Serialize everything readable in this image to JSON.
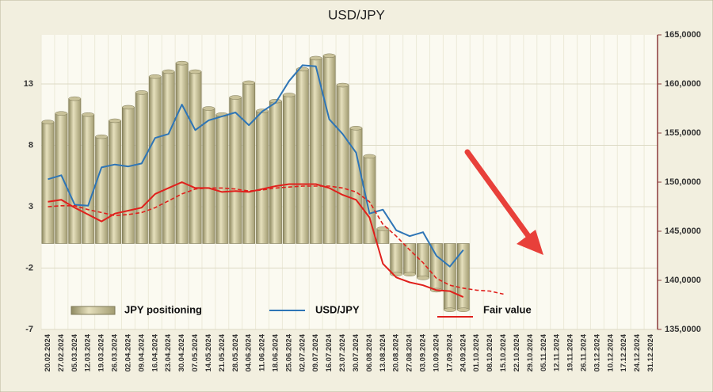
{
  "chart_data": {
    "type": "combo",
    "title": "USD/JPY",
    "categories": [
      "20.02.2024",
      "27.02.2024",
      "05.03.2024",
      "12.03.2024",
      "19.03.2024",
      "26.03.2024",
      "02.04.2024",
      "09.04.2024",
      "16.04.2024",
      "23.04.2024",
      "30.04.2024",
      "07.05.2024",
      "14.05.2024",
      "21.05.2024",
      "28.05.2024",
      "04.06.2024",
      "11.06.2024",
      "18.06.2024",
      "25.06.2024",
      "02.07.2024",
      "09.07.2024",
      "16.07.2024",
      "23.07.2024",
      "30.07.2024",
      "06.08.2024",
      "13.08.2024",
      "20.08.2024",
      "27.08.2024",
      "03.09.2024",
      "10.09.2024",
      "17.09.2024",
      "24.09.2024",
      "01.10.2024",
      "08.10.2024",
      "15.10.2024",
      "22.10.2024",
      "29.10.2024",
      "05.11.2024",
      "12.11.2024",
      "19.11.2024",
      "26.11.2024",
      "03.12.2024",
      "10.12.2024",
      "17.12.2024",
      "24.12.2024",
      "31.12.2024"
    ],
    "series": [
      {
        "name": "JPY positioning",
        "type": "bar",
        "color": "#c9c29a",
        "axis": "y",
        "values": [
          9.9,
          10.6,
          11.8,
          10.5,
          8.7,
          10.0,
          11.1,
          12.3,
          13.6,
          14.0,
          14.7,
          14.0,
          11.0,
          10.5,
          11.9,
          13.1,
          10.8,
          11.6,
          12.1,
          14.2,
          15.1,
          15.3,
          12.9,
          9.4,
          7.1,
          1.2,
          -2.5,
          -2.5,
          -2.8,
          -3.8,
          -5.4,
          -5.4,
          null,
          null,
          null,
          null,
          null,
          null,
          null,
          null,
          null,
          null,
          null,
          null,
          null,
          null
        ]
      },
      {
        "name": "USD/JPY",
        "type": "line",
        "color": "#2e75b6",
        "axis": "y2",
        "values": [
          150.3,
          150.7,
          147.7,
          147.6,
          151.5,
          151.8,
          151.6,
          151.9,
          154.5,
          154.9,
          157.9,
          155.3,
          156.3,
          156.7,
          157.1,
          155.8,
          157.2,
          158.1,
          160.3,
          161.9,
          161.8,
          156.4,
          154.9,
          153.0,
          146.8,
          147.2,
          145.1,
          144.5,
          144.9,
          142.5,
          141.4,
          143.1,
          null,
          null,
          null,
          null,
          null,
          null,
          null,
          null,
          null,
          null,
          null,
          null,
          null,
          null
        ]
      },
      {
        "name": "Fair value",
        "type": "line",
        "color": "#e0201c",
        "axis": "y2",
        "values": [
          148.0,
          148.2,
          147.4,
          146.7,
          146.0,
          146.8,
          147.1,
          147.4,
          148.8,
          149.4,
          150.0,
          149.4,
          149.4,
          149.0,
          149.1,
          149.0,
          149.3,
          149.6,
          149.8,
          149.8,
          149.8,
          149.4,
          148.7,
          148.2,
          146.4,
          141.7,
          140.3,
          139.8,
          139.5,
          139.0,
          138.9,
          138.3,
          null,
          null,
          null,
          null,
          null,
          null,
          null,
          null,
          null,
          null,
          null,
          null,
          null,
          null
        ]
      },
      {
        "type": "line",
        "color": "#e0201c",
        "axis": "y2",
        "dashed": true,
        "values": [
          147.5,
          147.6,
          147.6,
          147.2,
          146.9,
          146.6,
          146.7,
          146.9,
          147.4,
          148.1,
          148.8,
          149.3,
          149.4,
          149.4,
          149.3,
          149.1,
          149.2,
          149.4,
          149.5,
          149.6,
          149.6,
          149.6,
          149.4,
          149.0,
          148.0,
          145.7,
          144.5,
          143.1,
          141.8,
          140.2,
          139.5,
          139.2,
          139.0,
          138.9,
          138.6,
          null,
          null,
          null,
          null,
          null,
          null,
          null,
          null,
          null,
          null,
          null
        ]
      }
    ],
    "ylim": [
      -7,
      17
    ],
    "yticks": [
      -7,
      -2,
      3,
      8,
      13
    ],
    "y2lim": [
      135,
      165
    ],
    "y2ticks": [
      {
        "value": 135,
        "label": "135,0000"
      },
      {
        "value": 140,
        "label": "140,0000"
      },
      {
        "value": 145,
        "label": "145,0000"
      },
      {
        "value": 150,
        "label": "150,0000"
      },
      {
        "value": 155,
        "label": "155,0000"
      },
      {
        "value": 160,
        "label": "160,0000"
      },
      {
        "value": 165,
        "label": "165,0000"
      }
    ],
    "grid": true
  }
}
